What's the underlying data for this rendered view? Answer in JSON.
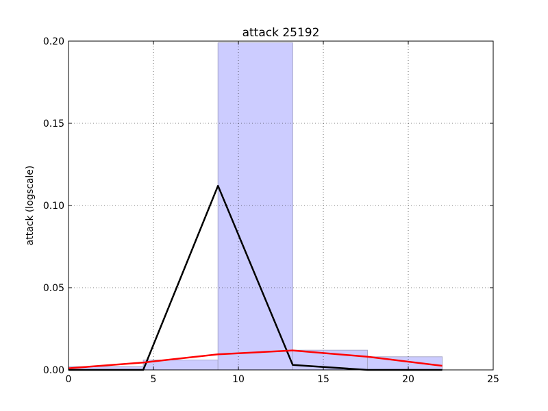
{
  "chart_data": {
    "type": "bar",
    "title": "attack 25192",
    "xlabel": "",
    "ylabel": "attack (logscale)",
    "xlim": [
      0,
      25
    ],
    "ylim": [
      0,
      0.2
    ],
    "x_ticks": [
      0,
      5,
      10,
      15,
      20,
      25
    ],
    "x_tick_labels": [
      "0",
      "5",
      "10",
      "15",
      "20",
      "25"
    ],
    "y_ticks": [
      0,
      0.05,
      0.1,
      0.15,
      0.2
    ],
    "y_tick_labels": [
      "0.00",
      "0.05",
      "0.10",
      "0.15",
      "0.20"
    ],
    "grid": true,
    "bars": [
      {
        "x0": 0.0,
        "x1": 4.4,
        "value": 0.002
      },
      {
        "x0": 4.4,
        "x1": 8.8,
        "value": 0.006
      },
      {
        "x0": 8.8,
        "x1": 13.2,
        "value": 0.199
      },
      {
        "x0": 13.2,
        "x1": 17.6,
        "value": 0.012
      },
      {
        "x0": 17.6,
        "x1": 22.0,
        "value": 0.008
      }
    ],
    "bar_color": "#ccccff",
    "series": [
      {
        "color": "#000000",
        "points": [
          [
            0,
            0
          ],
          [
            4.4,
            0
          ],
          [
            8.8,
            0.112
          ],
          [
            13.2,
            0.003
          ],
          [
            17.6,
            0
          ],
          [
            22.0,
            0
          ]
        ]
      },
      {
        "color": "#ff0000",
        "points": [
          [
            0,
            0.001
          ],
          [
            4.4,
            0.0045
          ],
          [
            8.8,
            0.0095
          ],
          [
            13.2,
            0.0118
          ],
          [
            17.6,
            0.008
          ],
          [
            22.0,
            0.0025
          ]
        ]
      }
    ]
  }
}
